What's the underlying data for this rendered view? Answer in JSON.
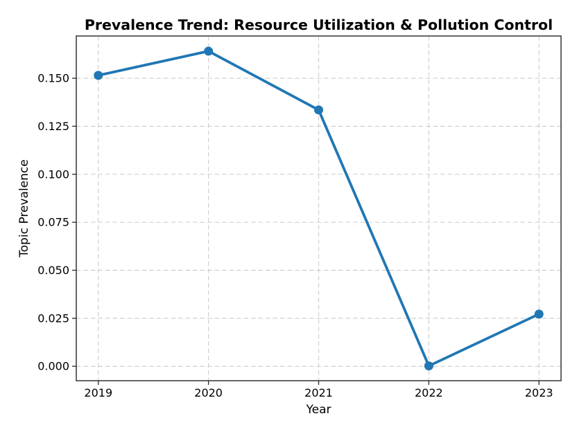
{
  "chart_data": {
    "type": "line",
    "title": "Prevalence Trend: Resource Utilization & Pollution Control",
    "xlabel": "Year",
    "ylabel": "Topic Prevalence",
    "x": [
      2019,
      2020,
      2021,
      2022,
      2023
    ],
    "xtick_labels": [
      "2019",
      "2020",
      "2021",
      "2022",
      "2023"
    ],
    "values": [
      0.1515,
      0.1641,
      0.1335,
      0.0002,
      0.0272
    ],
    "series_name": "Resource Utilization & Pollution Control",
    "ytick_values": [
      0.0,
      0.025,
      0.05,
      0.075,
      0.1,
      0.125,
      0.15
    ],
    "ytick_labels": [
      "0.000",
      "0.025",
      "0.050",
      "0.075",
      "0.100",
      "0.125",
      "0.150"
    ],
    "xlim": [
      2018.8,
      2023.2
    ],
    "ylim": [
      -0.0075,
      0.172
    ],
    "grid": true,
    "grid_style": "dashed",
    "legend": "none",
    "marker": "o",
    "colors": {
      "line": "#2077b4",
      "marker": "#2077b4",
      "grid": "#cccccc",
      "spine": "#333333",
      "tick": "#333333",
      "background": "#ffffff"
    }
  }
}
